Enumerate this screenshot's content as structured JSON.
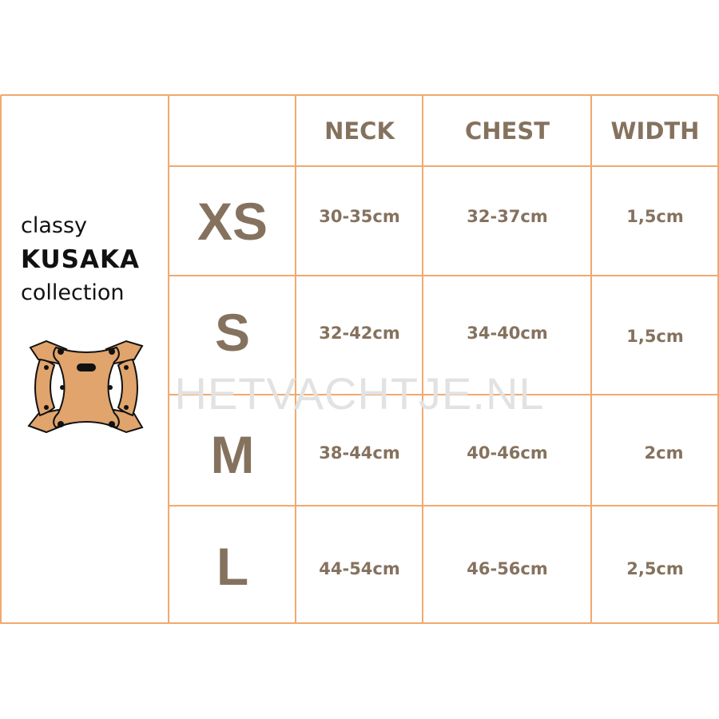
{
  "brand": {
    "line1": "classy",
    "line2": "KUSAKA",
    "line3": "collection",
    "product_icon": "dog-harness-icon"
  },
  "table": {
    "headers": [
      "NECK",
      "CHEST",
      "WIDTH"
    ],
    "rows": [
      {
        "size": "XS",
        "neck": "30-35cm",
        "chest": "32-37cm",
        "width": "1,5cm"
      },
      {
        "size": "S",
        "neck": "32-42cm",
        "chest": "34-40cm",
        "width": "1,5cm"
      },
      {
        "size": "M",
        "neck": "38-44cm",
        "chest": "40-46cm",
        "width": "2cm"
      },
      {
        "size": "L",
        "neck": "44-54cm",
        "chest": "46-56cm",
        "width": "2,5cm"
      }
    ]
  },
  "watermark": "HETVACHTJE.NL",
  "colors": {
    "border": "#f0a96e",
    "text": "#85725e",
    "harness": "#e0a46c"
  }
}
